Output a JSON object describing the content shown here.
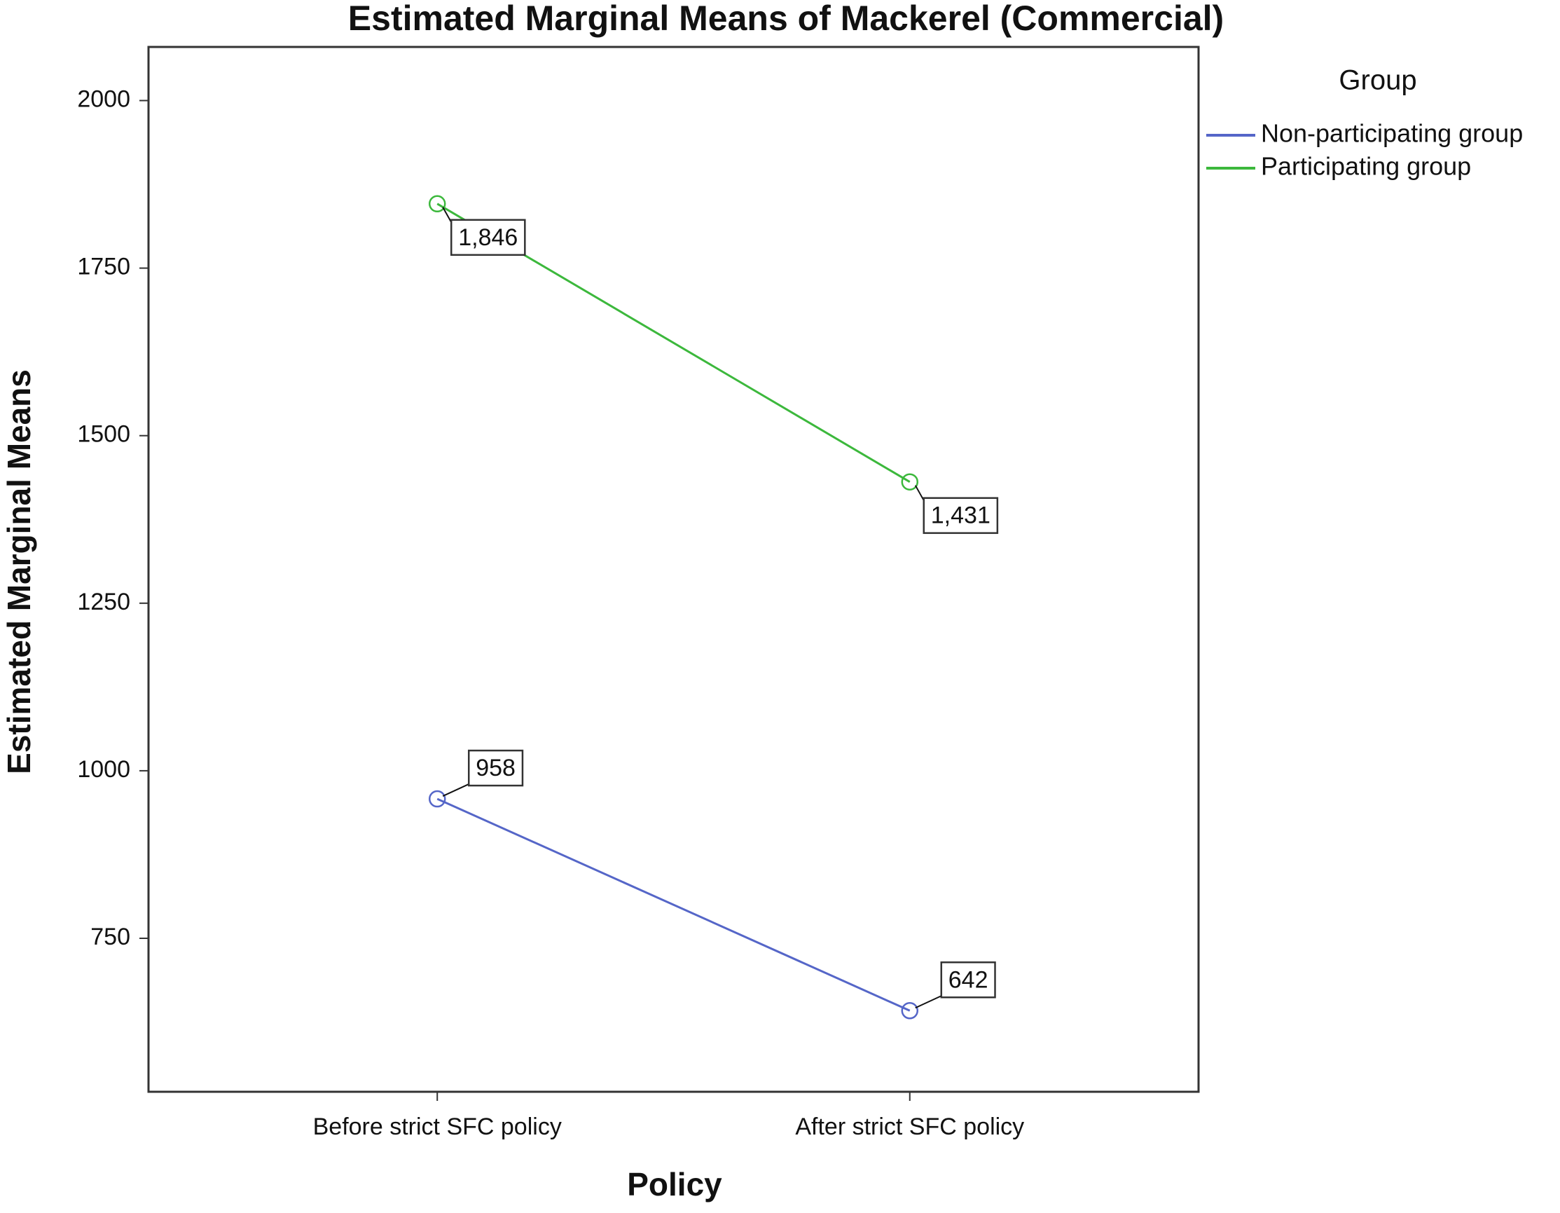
{
  "chart_data": {
    "type": "line",
    "title": "Estimated Marginal Means of Mackerel (Commercial)",
    "x_label": "Policy",
    "y_label": "Estimated Marginal Means",
    "categories": [
      "Before strict SFC policy",
      "After strict SFC policy"
    ],
    "legend_title": "Group",
    "series": [
      {
        "name": "Non-participating group",
        "color": "#5566c8",
        "values": [
          958,
          642
        ],
        "value_labels": [
          "958",
          "642"
        ]
      },
      {
        "name": "Participating group",
        "color": "#3cb83c",
        "values": [
          1846,
          1431
        ],
        "value_labels": [
          "1,846",
          "1,431"
        ]
      }
    ],
    "ylim": [
      521,
      2080
    ],
    "yticks": [
      750,
      1000,
      1250,
      1500,
      1750,
      2000
    ],
    "grid": false,
    "legend_position": "right"
  }
}
